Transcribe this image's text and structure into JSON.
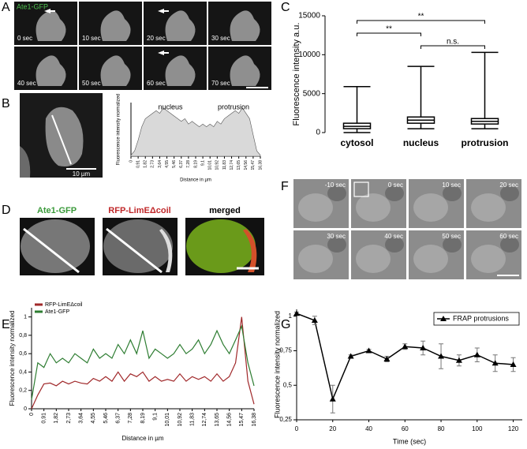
{
  "panel_labels": [
    "A",
    "B",
    "C",
    "D",
    "E",
    "F",
    "G"
  ],
  "panel_a": {
    "title": "Ate1-GFP",
    "frames": [
      "0 sec",
      "10 sec",
      "20 sec",
      "30 sec",
      "40 sec",
      "50 sec",
      "60 sec",
      "70 sec"
    ]
  },
  "panel_b": {
    "scale_bar": "10 µm"
  },
  "panel_d": {
    "titles": [
      "Ate1-GFP",
      "RFP-LimEΔcoil",
      "merged"
    ]
  },
  "panel_f": {
    "frames": [
      "-10 sec",
      "0 sec",
      "10 sec",
      "20 sec",
      "30 sec",
      "40 sec",
      "50 sec",
      "60 sec"
    ]
  },
  "chart_data": [
    {
      "type": "area",
      "ylabel": "Fluorescence intensity normalized",
      "xlabel": "Distance in µm",
      "annotations": [
        "nucleus",
        "protrusion"
      ],
      "color": "#d9d9d9",
      "x": [
        0,
        0.46,
        0.91,
        1.37,
        1.82,
        2.28,
        2.73,
        3.19,
        3.64,
        4.1,
        4.55,
        5.01,
        5.46,
        5.92,
        6.37,
        6.83,
        7.28,
        7.74,
        8.19,
        8.65,
        9.1,
        9.56,
        10.01,
        10.47,
        10.92,
        11.38,
        11.83,
        12.29,
        12.74,
        13.2,
        13.65,
        14.11,
        14.56,
        15.02,
        15.47,
        15.93,
        16.38
      ],
      "values": [
        0.02,
        0.1,
        0.3,
        0.55,
        0.7,
        0.75,
        0.8,
        0.85,
        0.8,
        0.9,
        0.85,
        0.8,
        0.75,
        0.7,
        0.65,
        0.7,
        0.6,
        0.65,
        0.6,
        0.55,
        0.6,
        0.55,
        0.6,
        0.55,
        0.65,
        0.6,
        0.7,
        0.75,
        0.8,
        0.85,
        0.8,
        0.9,
        0.8,
        0.7,
        0.4,
        0.1,
        0.02
      ],
      "xlim": [
        0,
        16.38
      ],
      "ylim": [
        0,
        1
      ],
      "xticks": [
        0,
        {
          "value": 0.91,
          "label": "0,91"
        },
        {
          "value": 1.82,
          "label": "1,82"
        },
        {
          "value": 2.73,
          "label": "2,73"
        },
        {
          "value": 3.64,
          "label": "3,64"
        },
        {
          "value": 4.55,
          "label": "4,55"
        },
        {
          "value": 5.46,
          "label": "5,46"
        },
        {
          "value": 6.37,
          "label": "6,37"
        },
        {
          "value": 7.28,
          "label": "7,28"
        },
        {
          "value": 8.19,
          "label": "8,19"
        },
        {
          "value": 9.1,
          "label": "9,1"
        },
        {
          "value": 10.01,
          "label": "10,01"
        },
        {
          "value": 10.92,
          "label": "10,92"
        },
        {
          "value": 11.83,
          "label": "11,83"
        },
        {
          "value": 12.74,
          "label": "12,74"
        },
        {
          "value": 13.65,
          "label": "13,65"
        },
        {
          "value": 14.56,
          "label": "14,56"
        },
        {
          "value": 15.47,
          "label": "15,47"
        },
        {
          "value": 16.38,
          "label": "16,38"
        }
      ]
    },
    {
      "type": "box",
      "ylabel": "Fluorescence intensity a.u.",
      "categories": [
        "cytosol",
        "nucleus",
        "protrusion"
      ],
      "boxes": [
        {
          "min": 0,
          "q1": 500,
          "median": 800,
          "q3": 1200,
          "max": 5900
        },
        {
          "min": 500,
          "q1": 1200,
          "median": 1600,
          "q3": 2000,
          "max": 8500
        },
        {
          "min": 500,
          "q1": 1100,
          "median": 1450,
          "q3": 1800,
          "max": 10300
        }
      ],
      "ylim": [
        0,
        15000
      ],
      "yticks": [
        0,
        5000,
        10000,
        15000
      ],
      "comparisons": [
        {
          "pair": [
            "cytosol",
            "protrusion"
          ],
          "label": "**"
        },
        {
          "pair": [
            "cytosol",
            "nucleus"
          ],
          "label": "**"
        },
        {
          "pair": [
            "nucleus",
            "protrusion"
          ],
          "label": "n.s."
        }
      ]
    },
    {
      "type": "line",
      "xlabel": "Distance in µm",
      "ylabel": "Fluorescence intensity normalized",
      "x": [
        0,
        0.46,
        0.91,
        1.37,
        1.82,
        2.28,
        2.73,
        3.19,
        3.64,
        4.1,
        4.55,
        5.01,
        5.46,
        5.92,
        6.37,
        6.83,
        7.28,
        7.74,
        8.19,
        8.65,
        9.1,
        9.56,
        10.01,
        10.47,
        10.92,
        11.38,
        11.83,
        12.29,
        12.74,
        13.2,
        13.65,
        14.11,
        14.56,
        15.02,
        15.47,
        15.93,
        16.38
      ],
      "series": [
        {
          "name": "RFP-LimEΔcoil",
          "color": "#a0282a",
          "values": [
            0,
            0.15,
            0.27,
            0.28,
            0.25,
            0.3,
            0.27,
            0.3,
            0.28,
            0.27,
            0.33,
            0.3,
            0.35,
            0.3,
            0.4,
            0.3,
            0.38,
            0.35,
            0.4,
            0.3,
            0.35,
            0.3,
            0.32,
            0.3,
            0.38,
            0.3,
            0.35,
            0.32,
            0.35,
            0.3,
            0.38,
            0.3,
            0.35,
            0.5,
            1,
            0.3,
            0.05
          ]
        },
        {
          "name": "Ate1-GFP",
          "color": "#2e7d32",
          "values": [
            0.1,
            0.5,
            0.45,
            0.6,
            0.5,
            0.55,
            0.5,
            0.6,
            0.55,
            0.5,
            0.65,
            0.55,
            0.6,
            0.55,
            0.7,
            0.6,
            0.75,
            0.6,
            0.85,
            0.55,
            0.65,
            0.6,
            0.55,
            0.6,
            0.7,
            0.6,
            0.65,
            0.75,
            0.6,
            0.7,
            0.85,
            0.7,
            0.6,
            0.75,
            0.9,
            0.5,
            0.25
          ]
        }
      ],
      "xlim": [
        0,
        16.38
      ],
      "ylim": [
        0,
        1.1
      ],
      "xticks": [
        0,
        {
          "value": 0.91,
          "label": "0,91"
        },
        {
          "value": 1.82,
          "label": "1,82"
        },
        {
          "value": 2.73,
          "label": "2,73"
        },
        {
          "value": 3.64,
          "label": "3,64"
        },
        {
          "value": 4.55,
          "label": "4,55"
        },
        {
          "value": 5.46,
          "label": "5,46"
        },
        {
          "value": 6.37,
          "label": "6,37"
        },
        {
          "value": 7.28,
          "label": "7,28"
        },
        {
          "value": 8.19,
          "label": "8,19"
        },
        {
          "value": 9.1,
          "label": "9,1"
        },
        {
          "value": 10.01,
          "label": "10,01"
        },
        {
          "value": 10.92,
          "label": "10,92"
        },
        {
          "value": 11.83,
          "label": "11,83"
        },
        {
          "value": 12.74,
          "label": "12,74"
        },
        {
          "value": 13.65,
          "label": "13,65"
        },
        {
          "value": 14.56,
          "label": "14,56"
        },
        {
          "value": 15.47,
          "label": "15,47"
        },
        {
          "value": 16.38,
          "label": "16,38"
        }
      ],
      "yticks": [
        0,
        {
          "value": 0.2,
          "label": "0,2"
        },
        {
          "value": 0.4,
          "label": "0,4"
        },
        {
          "value": 0.6,
          "label": "0,6"
        },
        {
          "value": 0.8,
          "label": "0,8"
        },
        1
      ],
      "legend": "upper left"
    },
    {
      "type": "errorline",
      "xlabel": "Time (sec)",
      "ylabel": "Fluorescence intensity normalized",
      "x": [
        0,
        10,
        20,
        30,
        40,
        50,
        60,
        70,
        80,
        90,
        100,
        110,
        120
      ],
      "series": [
        {
          "name": "FRAP protrusions",
          "color": "#000000",
          "values": [
            1.02,
            0.97,
            0.4,
            0.71,
            0.75,
            0.69,
            0.78,
            0.77,
            0.71,
            0.68,
            0.72,
            0.66,
            0.65
          ],
          "errors": [
            0.01,
            0.03,
            0.1,
            0.01,
            0.01,
            0.02,
            0.02,
            0.05,
            0.09,
            0.04,
            0.05,
            0.06,
            0.05
          ]
        }
      ],
      "xlim": [
        0,
        125
      ],
      "ylim": [
        0.25,
        1.05
      ],
      "xticks": [
        0,
        20,
        40,
        60,
        80,
        100,
        120
      ],
      "yticks": [
        {
          "value": 0.25,
          "label": "0,25"
        },
        {
          "value": 0.5,
          "label": "0,5"
        },
        {
          "value": 0.75,
          "label": "0,75"
        },
        1
      ],
      "legend": "upper right"
    }
  ]
}
